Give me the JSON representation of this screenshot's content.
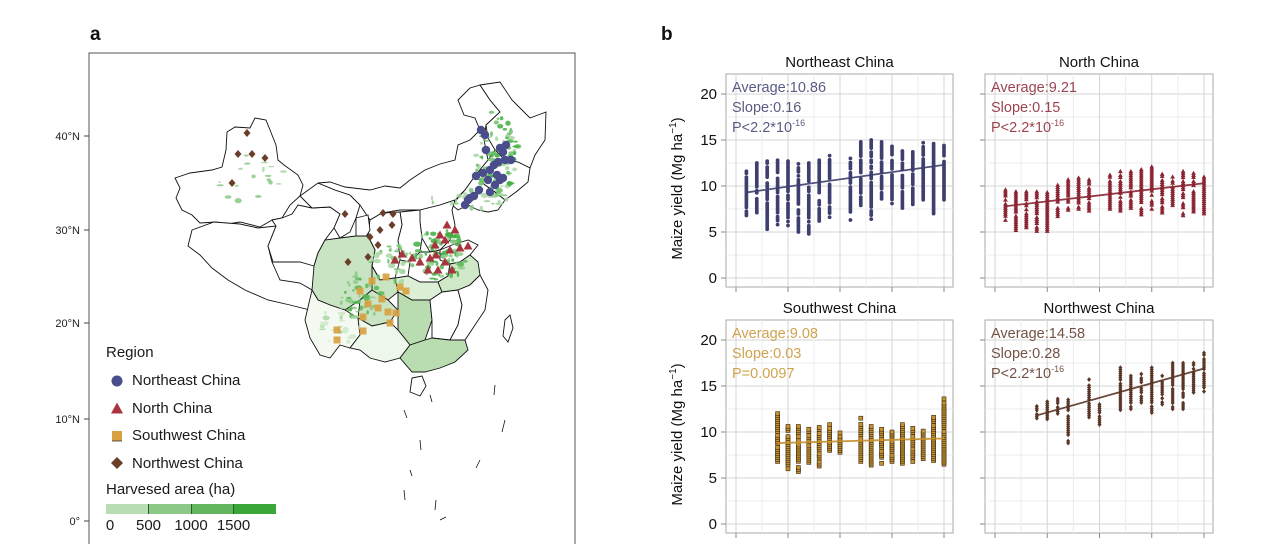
{
  "panel_a": {
    "letter": "a",
    "lat_ticks": [
      "40°N",
      "30°N",
      "20°N",
      "10°N",
      "0°"
    ],
    "legend": {
      "title": "Region",
      "items": [
        {
          "label": "Northeast China",
          "shape": "circle",
          "color": "#4a4d8c"
        },
        {
          "label": "North China",
          "shape": "triangle",
          "color": "#a8343f"
        },
        {
          "label": "Southwest China",
          "shape": "square",
          "color": "#d9a040"
        },
        {
          "label": "Northwest China",
          "shape": "diamond",
          "color": "#6b3e2a"
        }
      ],
      "harvest_title": "Harvesed area (ha)",
      "harvest_bins": [
        "#b8dcb3",
        "#8cc987",
        "#62b75e",
        "#3aa63a"
      ],
      "harvest_labels": [
        "0",
        "500",
        "1000",
        "1500"
      ]
    }
  },
  "panel_b": {
    "letter": "b",
    "ylabel": "Maize yield (Mg ha",
    "ylabel_sup": "−1",
    "ylabel_close": ")"
  },
  "chart_data": [
    {
      "type": "scatter",
      "title": "Northeast China",
      "color": "#3d3f6e",
      "marker": "circle",
      "annotations": [
        "Average:10.86",
        "Slope:0.16",
        "P<2.2*10",
        "-16"
      ],
      "ylim": [
        0,
        22
      ],
      "yticks": [
        "0",
        "5",
        "10",
        "15",
        "20"
      ],
      "x_years": 20,
      "missing_year_index": 9,
      "columns": [
        [
          6.8,
          11.6
        ],
        [
          7.1,
          12.5
        ],
        [
          5.3,
          12.7
        ],
        [
          5.8,
          12.8
        ],
        [
          5.7,
          12.7
        ],
        [
          5.0,
          12.4
        ],
        [
          4.8,
          12.5
        ],
        [
          6.2,
          12.8
        ],
        [
          6.6,
          13.3
        ],
        null,
        [
          6.3,
          13.0
        ],
        [
          7.9,
          14.8
        ],
        [
          6.4,
          15.0
        ],
        [
          8.6,
          14.8
        ],
        [
          8.1,
          14.3
        ],
        [
          7.6,
          13.8
        ],
        [
          8.0,
          13.7
        ],
        [
          8.5,
          14.7
        ],
        [
          7.0,
          14.6
        ],
        [
          8.5,
          14.4
        ]
      ],
      "trend": [
        9.3,
        12.3
      ]
    },
    {
      "type": "scatter",
      "title": "North China",
      "color": "#8a2432",
      "marker": "triangle",
      "annotations": [
        "Average:9.21",
        "Slope:0.15",
        "P<2.2*10",
        "-16"
      ],
      "ylim": [
        0,
        22
      ],
      "yticks": [
        "0",
        "5",
        "10",
        "15",
        "20"
      ],
      "x_years": 20,
      "missing_year_index": 9,
      "columns": [
        [
          6.3,
          9.6
        ],
        [
          5.2,
          9.4
        ],
        [
          5.5,
          9.4
        ],
        [
          5.1,
          9.4
        ],
        [
          5.1,
          9.3
        ],
        [
          6.7,
          10.1
        ],
        [
          7.4,
          10.7
        ],
        [
          7.5,
          10.9
        ],
        [
          7.3,
          10.7
        ],
        null,
        [
          7.5,
          11.2
        ],
        [
          7.3,
          11.6
        ],
        [
          7.6,
          11.6
        ],
        [
          6.9,
          11.8
        ],
        [
          7.5,
          12.1
        ],
        [
          7.1,
          11.3
        ],
        [
          7.9,
          11.0
        ],
        [
          6.8,
          11.6
        ],
        [
          7.2,
          11.4
        ],
        [
          7.0,
          11.0
        ]
      ],
      "trend": [
        7.8,
        10.3
      ]
    },
    {
      "type": "scatter",
      "title": "Southwest China",
      "color": "#c7922f",
      "marker": "square",
      "annotations": [
        "Average:9.08",
        "Slope:0.03",
        "P=0.0097",
        ""
      ],
      "ylim": [
        0,
        22
      ],
      "yticks": [
        "0",
        "5",
        "10",
        "15",
        "20"
      ],
      "x_years": 20,
      "missing_year_index": 9,
      "columns": [
        null,
        null,
        null,
        [
          6.8,
          12.0
        ],
        [
          6.0,
          10.6
        ],
        [
          5.7,
          10.6
        ],
        [
          6.7,
          10.3
        ],
        [
          6.3,
          10.5
        ],
        [
          8.0,
          10.8
        ],
        [
          7.8,
          9.9
        ],
        null,
        [
          6.8,
          11.5
        ],
        [
          6.4,
          10.6
        ],
        [
          6.6,
          10.3
        ],
        [
          6.8,
          10.0
        ],
        [
          6.6,
          10.8
        ],
        [
          6.8,
          10.4
        ],
        [
          7.1,
          10.1
        ],
        [
          6.9,
          11.6
        ],
        [
          6.5,
          13.6
        ]
      ],
      "trend": [
        8.8,
        9.3
      ]
    },
    {
      "type": "scatter",
      "title": "Northwest China",
      "color": "#5a3526",
      "marker": "diamond",
      "annotations": [
        "Average:14.58",
        "Slope:0.28",
        "P<2.2*10",
        "-16"
      ],
      "ylim": [
        0,
        22
      ],
      "yticks": [
        "0",
        "5",
        "10",
        "15",
        "20"
      ],
      "x_years": 20,
      "missing_year_index": 9,
      "columns": [
        null,
        null,
        null,
        [
          11.5,
          12.8
        ],
        [
          11.4,
          13.3
        ],
        [
          12.0,
          13.6
        ],
        [
          8.8,
          13.5
        ],
        null,
        [
          11.6,
          15.7
        ],
        [
          10.8,
          13.0
        ],
        null,
        [
          12.4,
          17.0
        ],
        [
          12.5,
          16.1
        ],
        [
          13.2,
          16.3
        ],
        [
          12.1,
          17.0
        ],
        [
          13.0,
          16.1
        ],
        [
          12.5,
          17.5
        ],
        [
          12.5,
          17.5
        ],
        [
          14.3,
          17.5
        ],
        [
          14.4,
          18.6
        ]
      ],
      "trend": [
        11.8,
        16.9
      ]
    }
  ]
}
